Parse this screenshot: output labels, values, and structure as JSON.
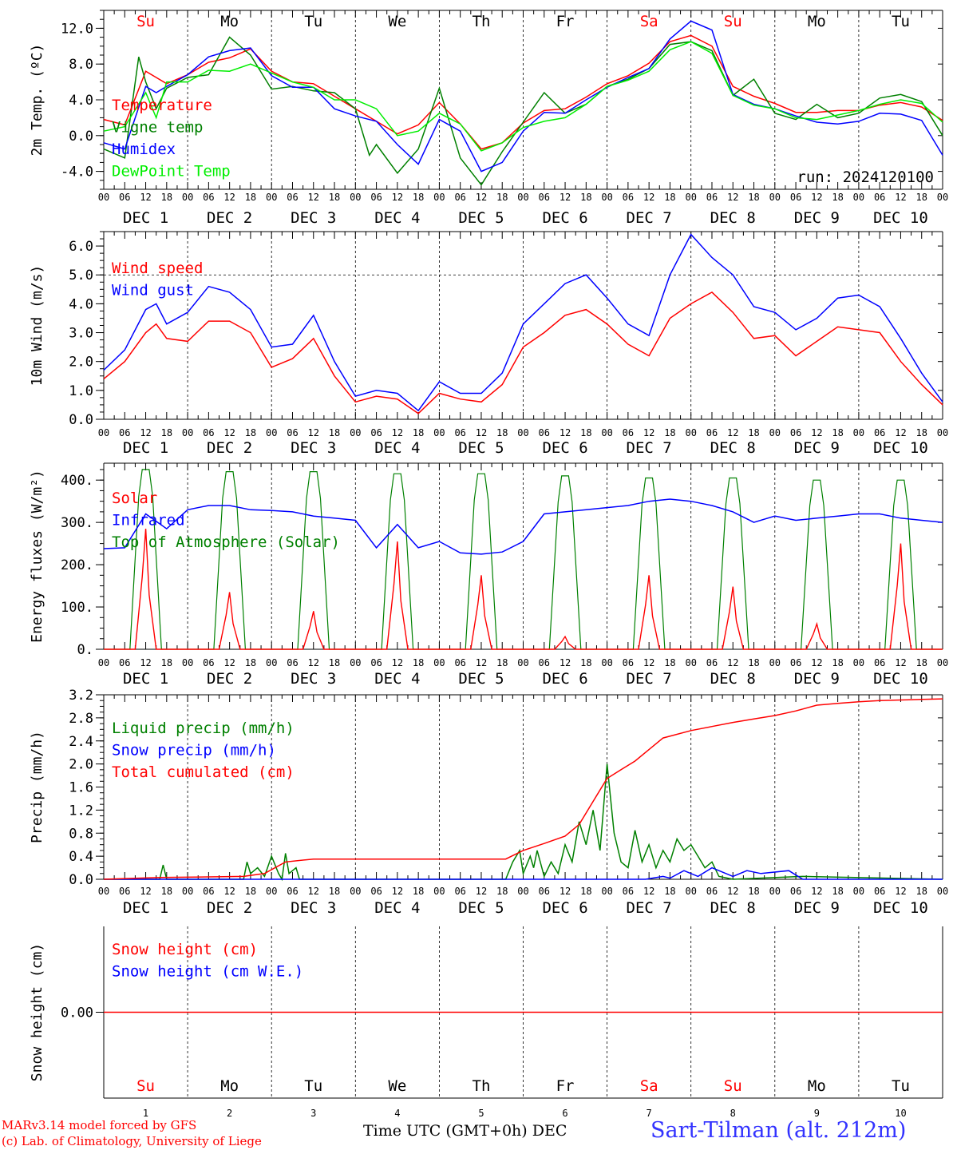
{
  "colors": {
    "red": "#ff0000",
    "green": "#008000",
    "blue": "#0000ff",
    "lime": "#00ee00",
    "weekend": "#ff0000",
    "weekday": "#000000"
  },
  "footer": {
    "credit_line1": "MARv3.14 model forced by GFS",
    "credit_line2": "(c) Lab. of Climatology, University of Liege",
    "xlabel": "Time UTC (GMT+0h) DEC",
    "station": "Sart-Tilman (alt. 212m)"
  },
  "hour_labels": [
    "00",
    "06",
    "12",
    "18"
  ],
  "final_hour_label": "00",
  "date_labels": [
    "DEC  1",
    "DEC  2",
    "DEC  3",
    "DEC  4",
    "DEC  5",
    "DEC  6",
    "DEC  7",
    "DEC  8",
    "DEC  9",
    "DEC 10"
  ],
  "days": [
    {
      "name": "Su",
      "weekend": true,
      "num": "1"
    },
    {
      "name": "Mo",
      "weekend": false,
      "num": "2"
    },
    {
      "name": "Tu",
      "weekend": false,
      "num": "3"
    },
    {
      "name": "We",
      "weekend": false,
      "num": "4"
    },
    {
      "name": "Th",
      "weekend": false,
      "num": "5"
    },
    {
      "name": "Fr",
      "weekend": false,
      "num": "6"
    },
    {
      "name": "Sa",
      "weekend": true,
      "num": "7"
    },
    {
      "name": "Su",
      "weekend": true,
      "num": "8"
    },
    {
      "name": "Mo",
      "weekend": false,
      "num": "9"
    },
    {
      "name": "Tu",
      "weekend": false,
      "num": "10"
    }
  ],
  "chart_data": [
    {
      "id": "temp",
      "type": "line",
      "ylabel": "2m Temp. (ºC)",
      "ylim": [
        -6,
        14
      ],
      "yticks": [
        -4,
        0,
        4,
        8,
        12
      ],
      "ytick_labels": [
        "-4.0",
        "0.0",
        "4.0",
        "8.0",
        "12.0"
      ],
      "annotation": "run: 2024120100",
      "legend": [
        "Temperature",
        "Vigne temp",
        "Humidex",
        "DewPoint Temp"
      ],
      "series": [
        {
          "name": "Temperature",
          "color": "red",
          "x": [
            0,
            6,
            12,
            15,
            18,
            24,
            30,
            36,
            42,
            48,
            54,
            60,
            66,
            72,
            78,
            84,
            90,
            96,
            102,
            108,
            114,
            120,
            126,
            132,
            138,
            144,
            150,
            156,
            162,
            168,
            174,
            180,
            186,
            192,
            198,
            204,
            210,
            216,
            222,
            228,
            234,
            240
          ],
          "y": [
            1.8,
            1.2,
            7.2,
            6.5,
            5.8,
            6.8,
            8.2,
            8.7,
            9.7,
            7.2,
            6.0,
            5.8,
            4.4,
            3.0,
            1.6,
            0.2,
            1.2,
            3.7,
            1.3,
            -1.5,
            -0.8,
            1.4,
            2.8,
            3.0,
            4.3,
            5.8,
            6.7,
            8.1,
            10.5,
            11.2,
            10.0,
            5.5,
            4.4,
            3.6,
            2.6,
            2.6,
            2.8,
            2.8,
            3.4,
            3.7,
            3.2,
            1.7
          ]
        },
        {
          "name": "Vigne temp",
          "color": "green",
          "x": [
            0,
            6,
            10,
            12,
            15,
            18,
            24,
            30,
            36,
            42,
            48,
            54,
            60,
            66,
            72,
            76,
            78,
            84,
            90,
            96,
            102,
            108,
            114,
            120,
            126,
            132,
            138,
            144,
            150,
            156,
            162,
            168,
            174,
            180,
            186,
            192,
            198,
            204,
            210,
            216,
            222,
            228,
            234,
            240
          ],
          "y": [
            -1.5,
            -2.5,
            8.8,
            6.0,
            3.0,
            5.3,
            6.5,
            6.8,
            11.0,
            9.0,
            5.2,
            5.5,
            5.0,
            4.8,
            3.0,
            -2.2,
            -1.0,
            -4.2,
            -1.5,
            5.3,
            -2.5,
            -5.5,
            -1.8,
            1.5,
            4.8,
            2.5,
            3.5,
            5.5,
            6.3,
            7.5,
            10.2,
            10.5,
            9.5,
            4.5,
            6.3,
            2.5,
            1.8,
            3.5,
            2.0,
            2.5,
            4.2,
            4.6,
            3.8,
            0.0
          ]
        },
        {
          "name": "Humidex",
          "color": "blue",
          "x": [
            0,
            6,
            12,
            15,
            18,
            24,
            30,
            36,
            42,
            48,
            54,
            60,
            66,
            72,
            78,
            84,
            90,
            96,
            102,
            108,
            114,
            120,
            126,
            132,
            138,
            144,
            150,
            156,
            162,
            168,
            174,
            180,
            186,
            192,
            198,
            204,
            210,
            216,
            222,
            228,
            234,
            240
          ],
          "y": [
            -0.8,
            -1.5,
            5.5,
            4.8,
            5.5,
            6.8,
            8.8,
            9.5,
            9.8,
            6.7,
            5.4,
            5.4,
            3.0,
            2.2,
            1.6,
            -1.0,
            -3.2,
            1.8,
            0.5,
            -4.0,
            -3.0,
            0.5,
            2.6,
            2.5,
            4.0,
            5.4,
            6.5,
            7.5,
            10.8,
            12.8,
            11.8,
            4.6,
            3.5,
            3.0,
            2.2,
            1.5,
            1.3,
            1.6,
            2.5,
            2.4,
            1.7,
            -2.2
          ]
        },
        {
          "name": "DewPoint Temp",
          "color": "lime",
          "x": [
            0,
            6,
            12,
            15,
            18,
            24,
            30,
            36,
            42,
            48,
            54,
            60,
            66,
            72,
            78,
            84,
            90,
            96,
            102,
            108,
            114,
            120,
            126,
            132,
            138,
            144,
            150,
            156,
            162,
            168,
            174,
            180,
            186,
            192,
            198,
            204,
            210,
            216,
            222,
            228,
            234,
            240
          ],
          "y": [
            0.5,
            1.0,
            4.8,
            2.0,
            6.0,
            6.0,
            7.3,
            7.2,
            8.0,
            7.0,
            6.0,
            5.4,
            4.0,
            4.0,
            3.0,
            0.0,
            0.5,
            2.5,
            1.3,
            -1.7,
            -0.8,
            0.9,
            1.6,
            2.0,
            3.5,
            5.5,
            6.2,
            7.2,
            9.6,
            10.5,
            9.2,
            4.5,
            3.4,
            3.0,
            2.0,
            1.8,
            2.3,
            2.8,
            3.5,
            4.0,
            3.6,
            1.5
          ]
        }
      ]
    },
    {
      "id": "wind",
      "type": "line",
      "ylabel": "10m Wind (m/s)",
      "ylim": [
        0,
        6.5
      ],
      "yticks": [
        0,
        1,
        2,
        3,
        4,
        5,
        6
      ],
      "ytick_labels": [
        "0.0",
        "1.0",
        "2.0",
        "3.0",
        "4.0",
        "5.0",
        "6.0"
      ],
      "reference_line": 5.0,
      "legend": [
        "Wind speed",
        "Wind gust"
      ],
      "series": [
        {
          "name": "Wind speed",
          "color": "red",
          "x": [
            0,
            6,
            12,
            15,
            18,
            24,
            30,
            36,
            42,
            48,
            54,
            60,
            66,
            72,
            78,
            84,
            90,
            96,
            102,
            108,
            114,
            120,
            126,
            132,
            138,
            144,
            150,
            156,
            162,
            168,
            174,
            180,
            186,
            192,
            198,
            204,
            210,
            216,
            222,
            228,
            234,
            240
          ],
          "y": [
            1.4,
            2.0,
            3.0,
            3.3,
            2.8,
            2.7,
            3.4,
            3.4,
            3.0,
            1.8,
            2.1,
            2.8,
            1.5,
            0.6,
            0.8,
            0.7,
            0.2,
            0.9,
            0.7,
            0.6,
            1.2,
            2.5,
            3.0,
            3.6,
            3.8,
            3.3,
            2.6,
            2.2,
            3.5,
            4.0,
            4.4,
            3.7,
            2.8,
            2.9,
            2.2,
            2.7,
            3.2,
            3.1,
            3.0,
            2.0,
            1.2,
            0.5
          ]
        },
        {
          "name": "Wind gust",
          "color": "blue",
          "x": [
            0,
            6,
            12,
            15,
            18,
            24,
            30,
            36,
            42,
            48,
            54,
            60,
            66,
            72,
            78,
            84,
            90,
            96,
            102,
            108,
            114,
            120,
            126,
            132,
            138,
            144,
            150,
            156,
            162,
            168,
            174,
            180,
            186,
            192,
            198,
            204,
            210,
            216,
            222,
            228,
            234,
            240
          ],
          "y": [
            1.7,
            2.4,
            3.8,
            4.0,
            3.3,
            3.7,
            4.6,
            4.4,
            3.8,
            2.5,
            2.6,
            3.6,
            2.0,
            0.8,
            1.0,
            0.9,
            0.3,
            1.3,
            0.9,
            0.9,
            1.6,
            3.3,
            4.0,
            4.7,
            5.0,
            4.2,
            3.3,
            2.9,
            5.0,
            6.4,
            5.6,
            5.0,
            3.9,
            3.7,
            3.1,
            3.5,
            4.2,
            4.3,
            3.9,
            2.8,
            1.6,
            0.6
          ]
        }
      ]
    },
    {
      "id": "energy",
      "type": "line",
      "ylabel": "Energy fluxes (W/m²)",
      "ylim": [
        0,
        440
      ],
      "yticks": [
        0,
        100,
        200,
        300,
        400
      ],
      "ytick_labels": [
        "0.",
        "100.",
        "200.",
        "300.",
        "400."
      ],
      "legend": [
        "Solar",
        "Infrared",
        "Top of Atmosphere (Solar)"
      ],
      "solar_noon_hour": 12,
      "solar_halfwidth_hours": 4.5,
      "toa_peaks": [
        425,
        420,
        420,
        415,
        415,
        410,
        405,
        405,
        400,
        400
      ],
      "solar_peaks": [
        285,
        135,
        90,
        255,
        175,
        30,
        175,
        148,
        60,
        250
      ],
      "series": [
        {
          "name": "Infrared",
          "color": "blue",
          "x": [
            0,
            6,
            12,
            18,
            24,
            30,
            36,
            42,
            48,
            54,
            60,
            66,
            72,
            78,
            84,
            90,
            96,
            102,
            108,
            114,
            120,
            126,
            132,
            138,
            144,
            150,
            156,
            162,
            168,
            174,
            180,
            186,
            192,
            198,
            204,
            210,
            216,
            222,
            228,
            234,
            240
          ],
          "y": [
            238,
            240,
            320,
            285,
            330,
            340,
            340,
            330,
            328,
            325,
            315,
            310,
            305,
            240,
            295,
            240,
            255,
            228,
            225,
            230,
            255,
            320,
            325,
            330,
            335,
            340,
            350,
            355,
            350,
            340,
            325,
            300,
            315,
            305,
            310,
            315,
            320,
            320,
            310,
            305,
            300
          ]
        }
      ]
    },
    {
      "id": "precip",
      "type": "line",
      "ylabel": "Precip (mm/h)",
      "ylim": [
        0,
        3.2
      ],
      "yticks": [
        0,
        0.4,
        0.8,
        1.2,
        1.6,
        2.0,
        2.4,
        2.8,
        3.2
      ],
      "ytick_labels": [
        "0.0",
        "0.4",
        "0.8",
        "1.2",
        "1.6",
        "2.0",
        "2.4",
        "2.8",
        "3.2"
      ],
      "legend": [
        "Liquid precip (mm/h)",
        "Snow precip (mm/h)",
        "Total cumulated (cm)"
      ],
      "series": [
        {
          "name": "Liquid precip (mm/h)",
          "color": "green",
          "x": [
            0,
            16,
            17,
            18,
            40,
            41,
            42,
            44,
            46,
            48,
            50,
            51,
            52,
            53,
            55,
            56,
            58,
            115,
            117,
            119,
            120,
            122,
            123,
            124,
            126,
            128,
            130,
            132,
            134,
            136,
            138,
            140,
            142,
            144,
            146,
            148,
            150,
            152,
            154,
            156,
            158,
            160,
            162,
            164,
            166,
            168,
            170,
            172,
            174,
            176,
            180,
            200,
            240
          ],
          "y": [
            0,
            0,
            0.25,
            0,
            0,
            0.3,
            0.1,
            0.2,
            0.05,
            0.4,
            0.1,
            0.0,
            0.45,
            0.1,
            0.2,
            0.0,
            0,
            0,
            0.3,
            0.5,
            0.1,
            0.4,
            0.2,
            0.5,
            0.05,
            0.3,
            0.1,
            0.6,
            0.3,
            1.0,
            0.6,
            1.2,
            0.5,
            2.0,
            0.8,
            0.3,
            0.2,
            0.85,
            0.3,
            0.6,
            0.2,
            0.5,
            0.3,
            0.7,
            0.5,
            0.6,
            0.4,
            0.2,
            0.3,
            0.05,
            0,
            0.05,
            0
          ]
        },
        {
          "name": "Snow precip (mm/h)",
          "color": "blue",
          "x": [
            0,
            155,
            160,
            162,
            166,
            170,
            174,
            180,
            184,
            188,
            196,
            200,
            240
          ],
          "y": [
            0,
            0,
            0.05,
            0.02,
            0.15,
            0.05,
            0.2,
            0.05,
            0.15,
            0.1,
            0.15,
            0,
            0
          ]
        },
        {
          "name": "Total cumulated (cm)",
          "color": "red",
          "x": [
            0,
            16,
            40,
            46,
            52,
            60,
            115,
            120,
            126,
            132,
            136,
            140,
            144,
            148,
            152,
            156,
            160,
            168,
            174,
            180,
            186,
            192,
            198,
            204,
            210,
            216,
            222,
            228,
            234,
            240
          ],
          "y": [
            0,
            0.03,
            0.05,
            0.1,
            0.3,
            0.35,
            0.35,
            0.5,
            0.62,
            0.75,
            0.95,
            1.35,
            1.75,
            1.9,
            2.05,
            2.25,
            2.45,
            2.58,
            2.65,
            2.72,
            2.78,
            2.84,
            2.92,
            3.02,
            3.05,
            3.08,
            3.1,
            3.11,
            3.12,
            3.13
          ]
        }
      ]
    },
    {
      "id": "snow",
      "type": "line",
      "ylabel": "Snow height (cm)",
      "ylim": [
        -1,
        1
      ],
      "yticks": [
        0
      ],
      "ytick_labels": [
        "0.00"
      ],
      "legend": [
        "Snow height (cm)",
        "Snow height (cm W.E.)"
      ],
      "series": [
        {
          "name": "Snow height (cm)",
          "color": "red",
          "x": [
            0,
            240
          ],
          "y": [
            0,
            0
          ]
        }
      ]
    }
  ]
}
